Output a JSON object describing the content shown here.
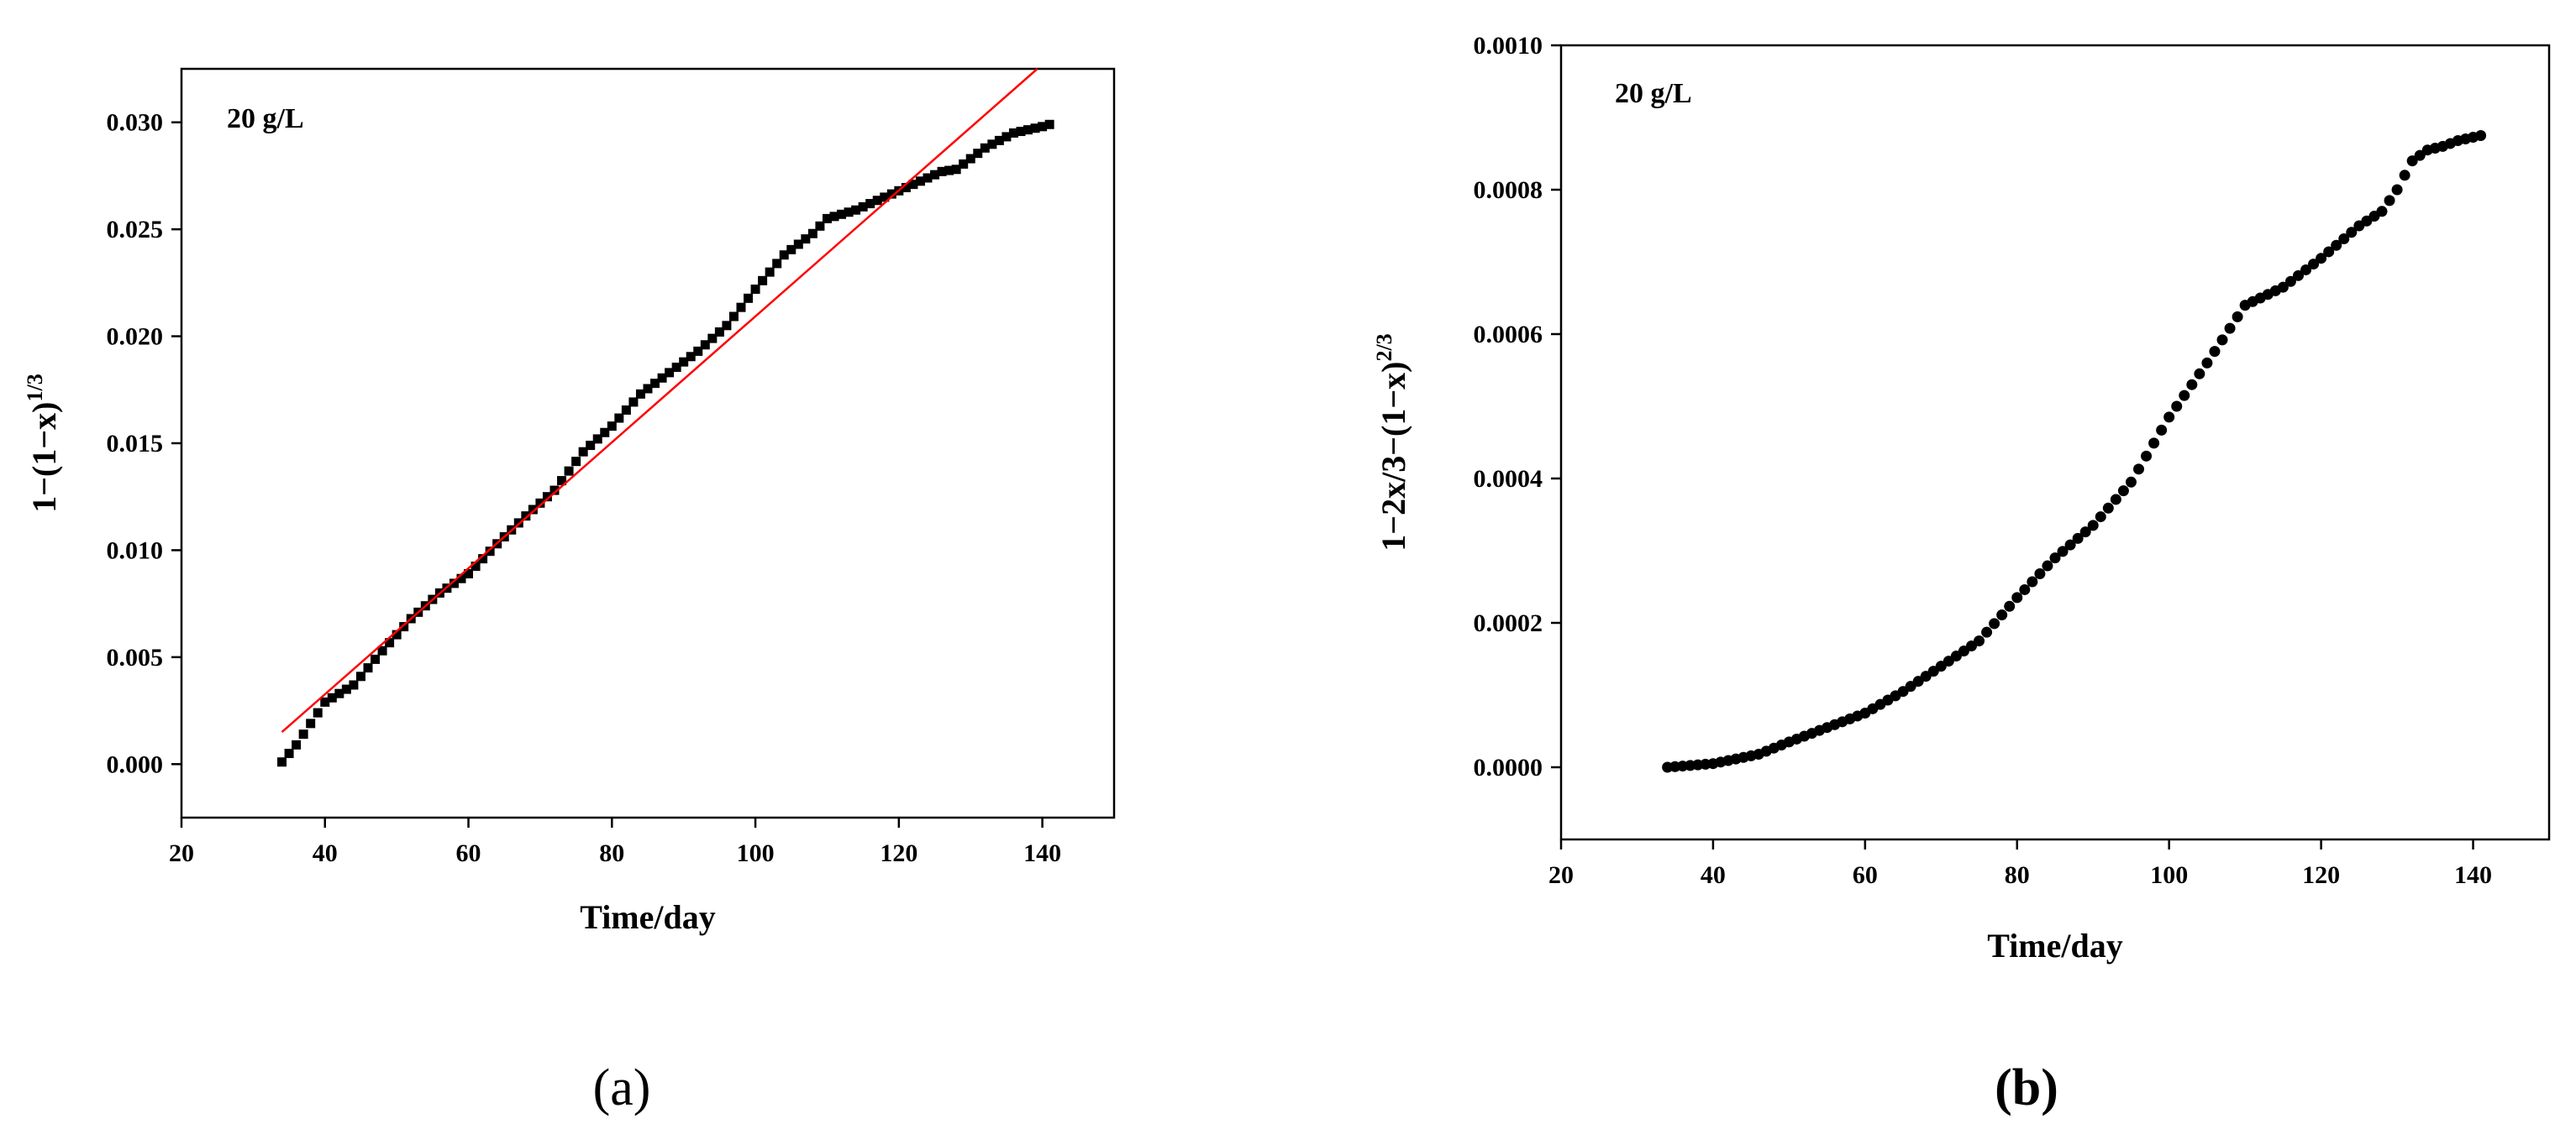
{
  "chart_data": [
    {
      "type": "scatter",
      "panel_label": "(a)",
      "annotation": "20 g/L",
      "xlabel": "Time/day",
      "ylabel_base": "1−(1−x)",
      "ylabel_sup": "1/3",
      "xlim": [
        20,
        150
      ],
      "ylim": [
        -0.0025,
        0.0325
      ],
      "xticks": [
        "20",
        "40",
        "60",
        "80",
        "100",
        "120",
        "140"
      ],
      "yticks": [
        "0.000",
        "0.005",
        "0.010",
        "0.015",
        "0.020",
        "0.025",
        "0.030"
      ],
      "marker": "square",
      "marker_color": "#000000",
      "fit_line_color": "#ff0000",
      "fit_line": {
        "x": [
          34,
          141
        ],
        "y": [
          0.0015,
          0.033
        ]
      },
      "keypoints": {
        "x": [
          34,
          36,
          40,
          44,
          48,
          52,
          56,
          60,
          64,
          68,
          72,
          76,
          80,
          84,
          88,
          92,
          96,
          100,
          104,
          108,
          110,
          114,
          118,
          122,
          126,
          128,
          132,
          136,
          140,
          141
        ],
        "y": [
          0.0001,
          0.0009,
          0.0029,
          0.0037,
          0.0053,
          0.0068,
          0.008,
          0.0089,
          0.0103,
          0.0116,
          0.0128,
          0.0146,
          0.0158,
          0.0173,
          0.0183,
          0.0193,
          0.0205,
          0.0222,
          0.0238,
          0.0248,
          0.0255,
          0.0259,
          0.0265,
          0.0271,
          0.0277,
          0.0278,
          0.0288,
          0.0295,
          0.0298,
          0.0299
        ]
      }
    },
    {
      "type": "scatter",
      "panel_label": "(b)",
      "annotation": "20 g/L",
      "xlabel": "Time/day",
      "ylabel_base": "1−2x/3−(1−x)",
      "ylabel_sup": "2/3",
      "xlim": [
        20,
        150
      ],
      "ylim": [
        -0.0001,
        0.001
      ],
      "xticks": [
        "20",
        "40",
        "60",
        "80",
        "100",
        "120",
        "140"
      ],
      "yticks": [
        "0.0000",
        "0.0002",
        "0.0004",
        "0.0006",
        "0.0008",
        "0.0010"
      ],
      "marker": "circle",
      "marker_color": "#000000",
      "keypoints": {
        "x": [
          34,
          40,
          46,
          50,
          55,
          60,
          65,
          70,
          75,
          80,
          85,
          90,
          95,
          100,
          105,
          110,
          115,
          120,
          125,
          128,
          130,
          132,
          134,
          136,
          138,
          141
        ],
        "y": [
          0.0,
          5e-06,
          1.8e-05,
          3.5e-05,
          5.5e-05,
          7.5e-05,
          0.000105,
          0.00014,
          0.000175,
          0.000235,
          0.00029,
          0.000335,
          0.000395,
          0.000485,
          0.00056,
          0.00064,
          0.000665,
          0.000705,
          0.00075,
          0.00077,
          0.0008,
          0.00084,
          0.000855,
          0.00086,
          0.000868,
          0.000875
        ]
      }
    }
  ]
}
